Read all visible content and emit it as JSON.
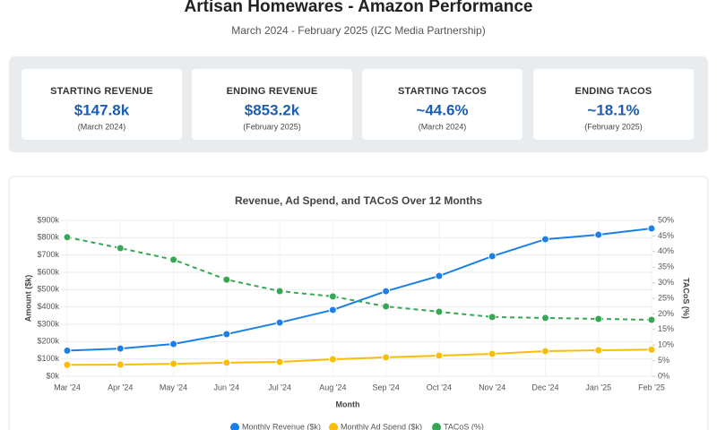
{
  "header": {
    "title": "Artisan Homewares - Amazon Performance",
    "subtitle": "March 2024 - February 2025 (IZC Media Partnership)"
  },
  "kpis": [
    {
      "label": "STARTING REVENUE",
      "value": "$147.8k",
      "note": "(March 2024)"
    },
    {
      "label": "ENDING REVENUE",
      "value": "$853.2k",
      "note": "(February 2025)"
    },
    {
      "label": "STARTING TACOS",
      "value": "~44.6%",
      "note": "(March 2024)"
    },
    {
      "label": "ENDING TACOS",
      "value": "~18.1%",
      "note": "(February 2025)"
    }
  ],
  "chart_data": {
    "type": "line",
    "title": "Revenue, Ad Spend, and TACoS Over 12 Months",
    "x_label": "Month",
    "y_label": "Amount ($k)",
    "y2_label": "TACoS (%)",
    "categories": [
      "Mar '24",
      "Apr '24",
      "May '24",
      "Jun '24",
      "Jul '24",
      "Aug '24",
      "Sep '24",
      "Oct '24",
      "Nov '24",
      "Dec '24",
      "Jan '25",
      "Feb '25"
    ],
    "series": [
      {
        "name": "Monthly Revenue ($k)",
        "color": "#1a7fe8",
        "values": [
          147.8,
          160,
          186,
          243,
          310,
          383,
          491,
          579,
          693,
          791,
          817,
          853.2
        ]
      },
      {
        "name": "Monthly Ad Spend ($k)",
        "color": "#fbbc04",
        "values": [
          66,
          67,
          72,
          78,
          83,
          98,
          109,
          119,
          129,
          145,
          150,
          154
        ]
      },
      {
        "name": "TACoS (%)",
        "color": "#34a853",
        "axis": "y2",
        "dashed": true,
        "values": [
          44.6,
          41.1,
          37.4,
          31.0,
          27.3,
          25.6,
          22.4,
          20.7,
          19.0,
          18.7,
          18.4,
          18.1
        ]
      }
    ],
    "ylim": [
      0,
      900
    ],
    "yticks": [
      {
        "value": 0,
        "label": "$0k"
      },
      {
        "value": 100,
        "label": "$100k"
      },
      {
        "value": 200,
        "label": "$200k"
      },
      {
        "value": 300,
        "label": "$300k"
      },
      {
        "value": 400,
        "label": "$400k"
      },
      {
        "value": 500,
        "label": "$500k"
      },
      {
        "value": 600,
        "label": "$600k"
      },
      {
        "value": 700,
        "label": "$700k"
      },
      {
        "value": 800,
        "label": "$800k"
      },
      {
        "value": 900,
        "label": "$900k"
      }
    ],
    "y2lim": [
      0,
      50
    ],
    "y2ticks": [
      {
        "value": 0,
        "label": "0%"
      },
      {
        "value": 5,
        "label": "5%"
      },
      {
        "value": 10,
        "label": "10%"
      },
      {
        "value": 15,
        "label": "15%"
      },
      {
        "value": 20,
        "label": "20%"
      },
      {
        "value": 25,
        "label": "25%"
      },
      {
        "value": 30,
        "label": "30%"
      },
      {
        "value": 35,
        "label": "35%"
      },
      {
        "value": 40,
        "label": "40%"
      },
      {
        "value": 45,
        "label": "45%"
      },
      {
        "value": 50,
        "label": "50%"
      }
    ],
    "grid": true,
    "legend": "bottom"
  }
}
